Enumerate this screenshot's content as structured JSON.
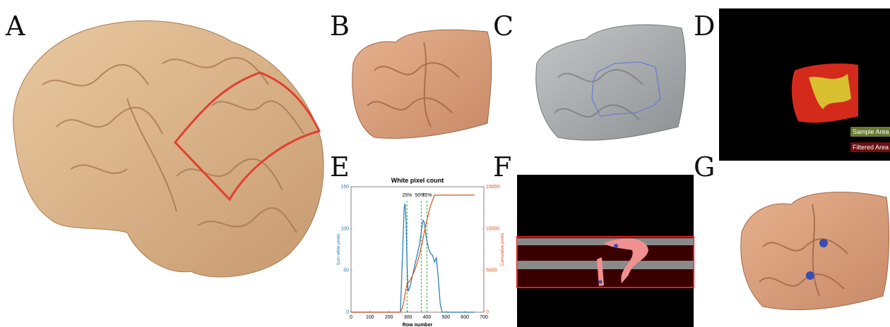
{
  "panels": [
    "A",
    "B",
    "C",
    "D",
    "E",
    "F",
    "G"
  ],
  "legend_d": [
    "Sample Area",
    "Filtered Area"
  ],
  "chart_data": {
    "type": "line",
    "title": "White pixel count",
    "xlabel": "Row number",
    "ylabel": "Sum white pixels",
    "y2label": "Cumulative pixels",
    "xlim": [
      0,
      700
    ],
    "xticks": [
      0,
      100,
      200,
      300,
      400,
      500,
      600,
      700
    ],
    "ylim": [
      0,
      150
    ],
    "yticks": [
      0,
      50,
      100,
      150
    ],
    "y2lim": [
      0,
      15000
    ],
    "y2ticks": [
      0,
      5000,
      10000,
      15000
    ],
    "x": [
      0,
      260,
      270,
      280,
      285,
      290,
      295,
      300,
      310,
      320,
      330,
      340,
      350,
      360,
      370,
      375,
      380,
      385,
      390,
      400,
      410,
      420,
      430,
      440,
      450,
      460,
      470,
      480,
      500,
      600,
      650
    ],
    "series": [
      {
        "color": "#1f77b4",
        "axis": "y",
        "values": [
          0,
          0,
          60,
          125,
          130,
          110,
          60,
          25,
          30,
          40,
          50,
          60,
          70,
          80,
          95,
          105,
          110,
          108,
          100,
          85,
          75,
          70,
          68,
          60,
          65,
          40,
          10,
          0,
          0,
          0,
          0
        ]
      },
      {
        "color": "#d95319",
        "axis": "y2",
        "values": [
          0,
          0,
          500,
          1500,
          2200,
          2800,
          3300,
          3500,
          3800,
          4200,
          4700,
          5300,
          6000,
          6800,
          7800,
          8300,
          8900,
          9400,
          10000,
          11000,
          12000,
          12800,
          13400,
          14000,
          14000,
          14000,
          14000,
          14000,
          14000,
          14000,
          14000
        ]
      }
    ],
    "markers": [
      {
        "x": 295,
        "label": "25%"
      },
      {
        "x": 370,
        "label": "50%"
      },
      {
        "x": 400,
        "label": "75%"
      }
    ]
  }
}
